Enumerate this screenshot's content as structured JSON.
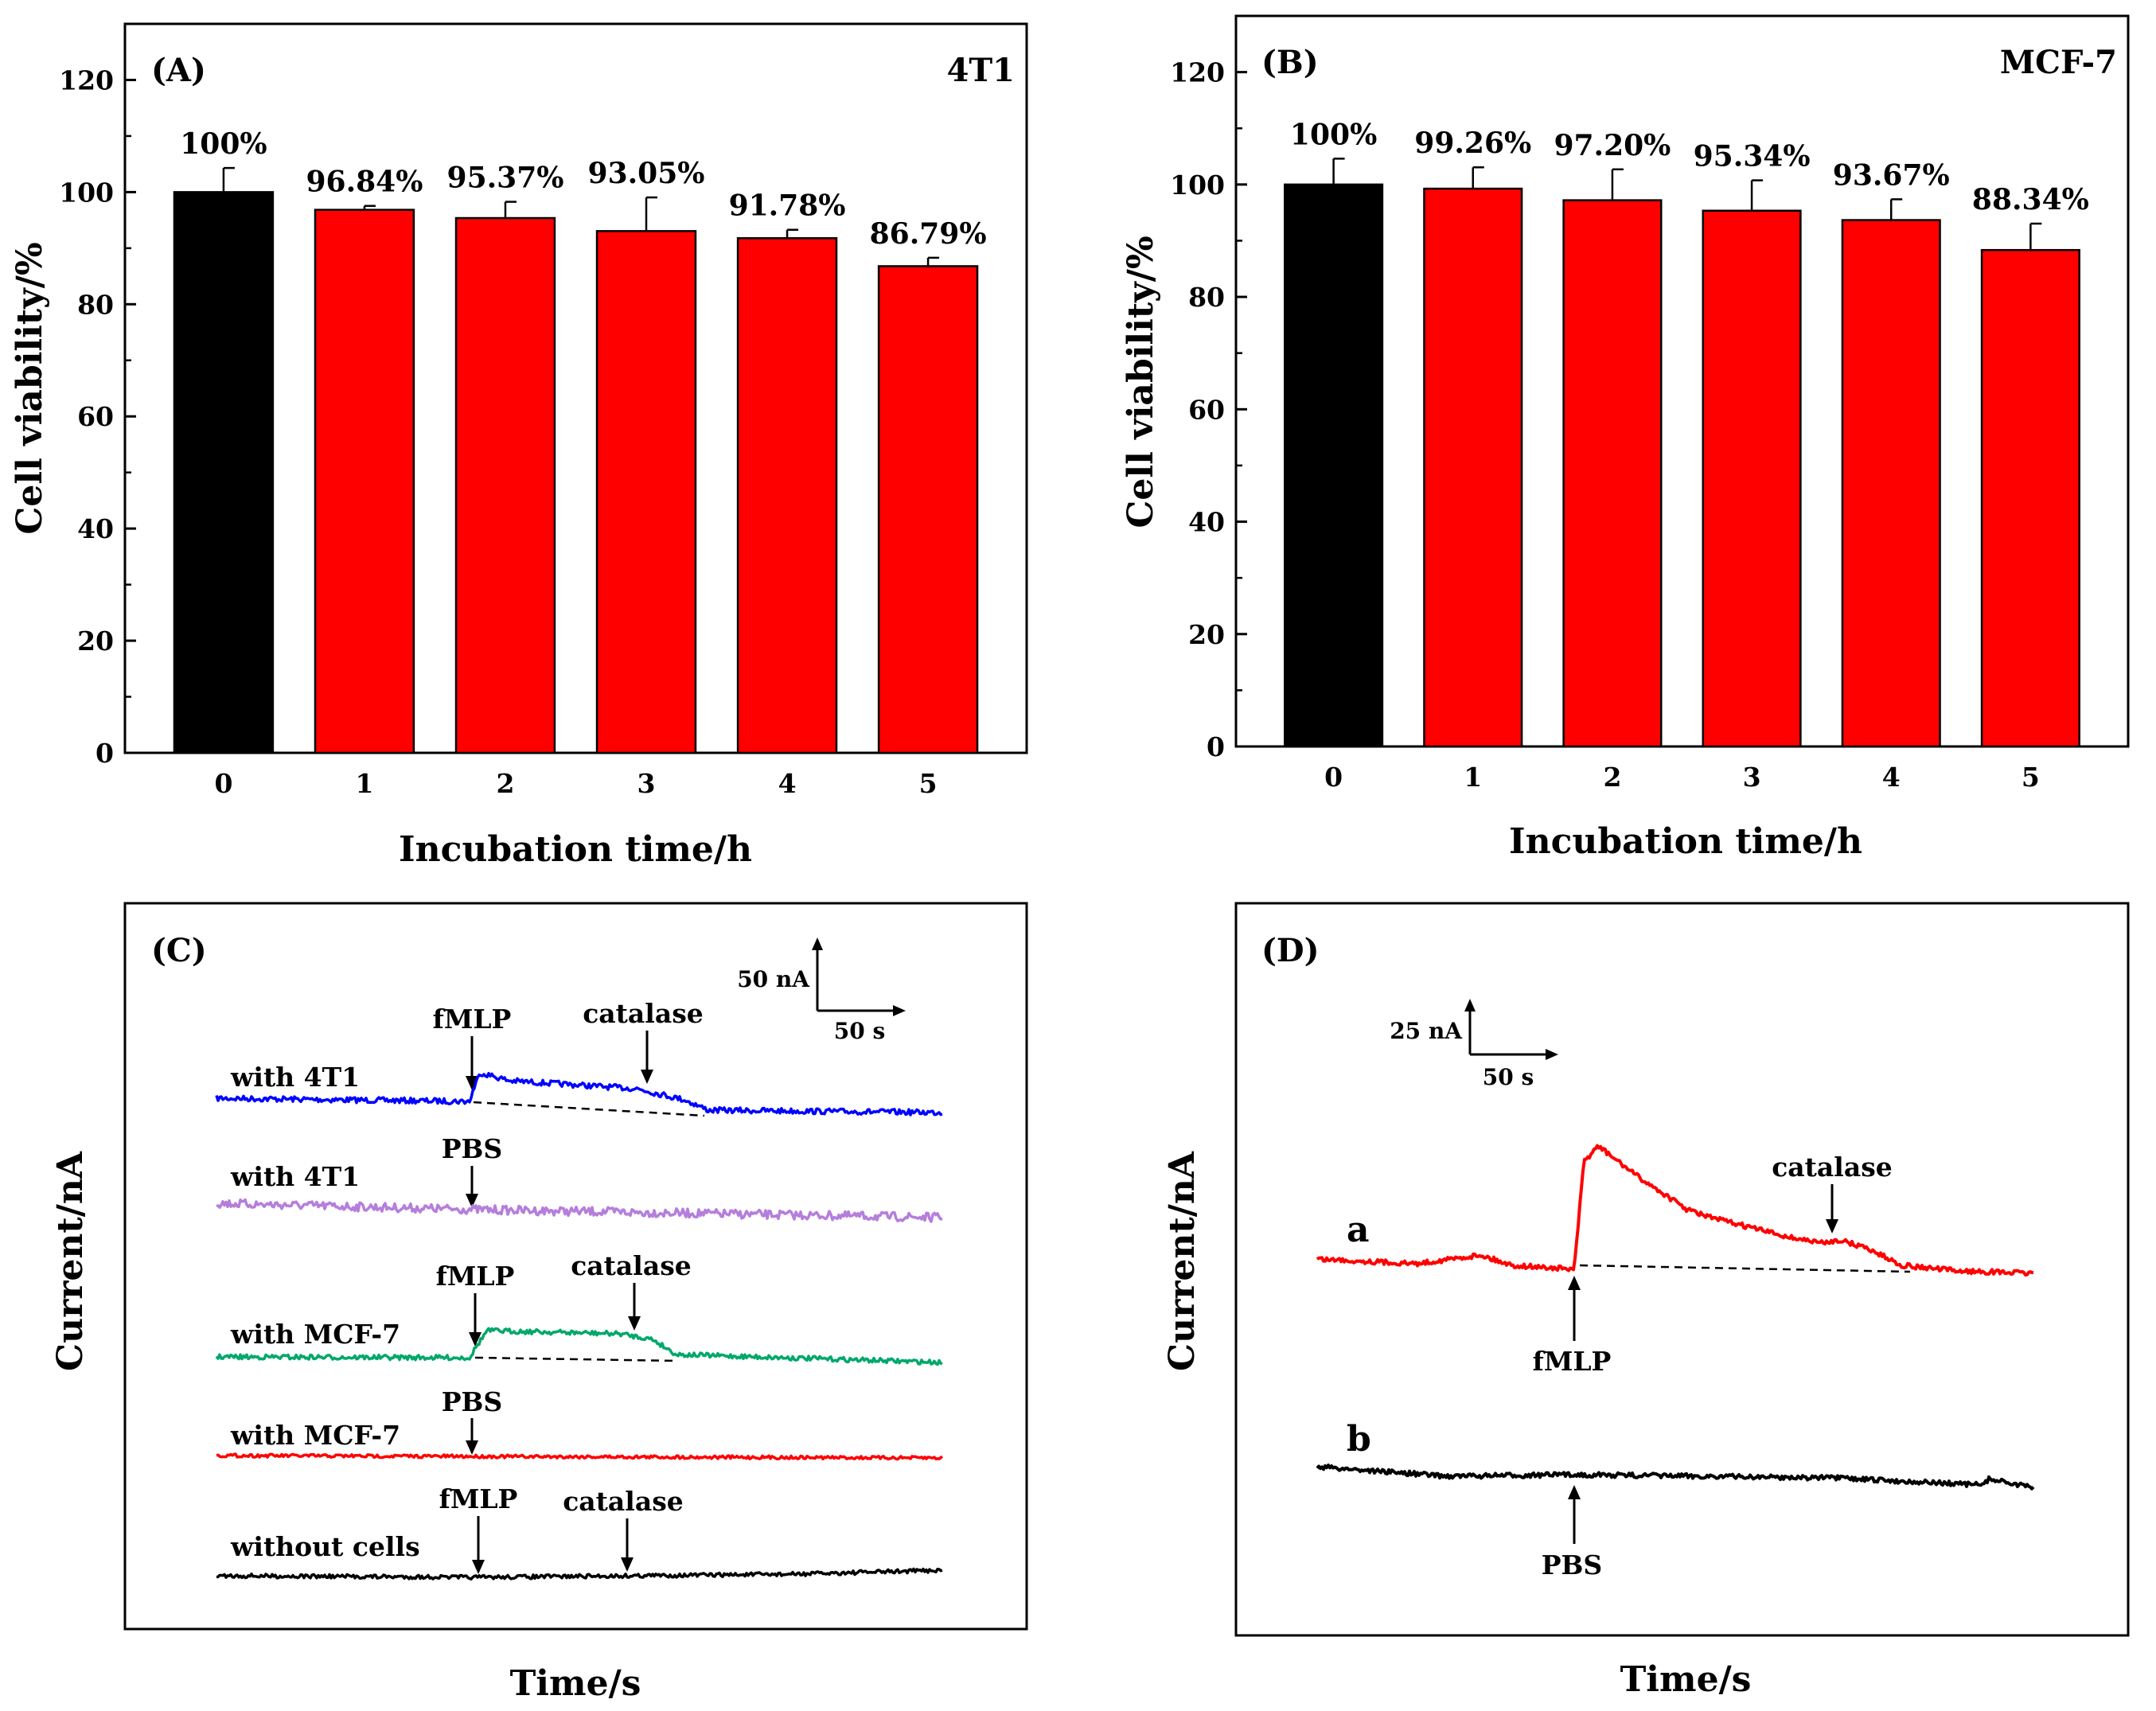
{
  "chart_data": [
    {
      "type": "bar",
      "panel": "(A)",
      "title": "4T1",
      "xlabel": "Incubation time/h",
      "ylabel": "Cell viability/%",
      "categories": [
        "0",
        "1",
        "2",
        "3",
        "4",
        "5"
      ],
      "values": [
        100,
        96.84,
        95.37,
        93.05,
        91.78,
        86.79
      ],
      "errors": [
        4.3,
        0.7,
        2.9,
        6.0,
        1.5,
        1.5
      ],
      "value_labels": [
        "100%",
        "96.84%",
        "95.37%",
        "93.05%",
        "91.78%",
        "86.79%"
      ],
      "colors": [
        "#000000",
        "#ff0000",
        "#ff0000",
        "#ff0000",
        "#ff0000",
        "#ff0000"
      ],
      "ylim": [
        0,
        130
      ],
      "yticks": [
        0,
        20,
        40,
        60,
        80,
        100,
        120
      ],
      "grid": false
    },
    {
      "type": "bar",
      "panel": "(B)",
      "title": "MCF-7",
      "xlabel": "Incubation time/h",
      "ylabel": "Cell viability/%",
      "categories": [
        "0",
        "1",
        "2",
        "3",
        "4",
        "5"
      ],
      "values": [
        100,
        99.26,
        97.2,
        95.34,
        93.67,
        88.34
      ],
      "errors": [
        4.6,
        3.8,
        5.5,
        5.4,
        3.7,
        4.7
      ],
      "value_labels": [
        "100%",
        "99.26%",
        "97.20%",
        "95.34%",
        "93.67%",
        "88.34%"
      ],
      "colors": [
        "#000000",
        "#ff0000",
        "#ff0000",
        "#ff0000",
        "#ff0000",
        "#ff0000"
      ],
      "ylim": [
        0,
        130
      ],
      "yticks": [
        0,
        20,
        40,
        60,
        80,
        100,
        120
      ],
      "grid": false
    },
    {
      "type": "line",
      "panel": "(C)",
      "xlabel": "Time/s",
      "ylabel": "Current/nA",
      "scale_bar": {
        "current": "50 nA",
        "time": "50 s"
      },
      "traces": [
        {
          "name": "with 4T1",
          "color": "#0000ff",
          "stimulus": "fMLP",
          "inhibitor": "catalase"
        },
        {
          "name": "with 4T1",
          "color": "#b57edc",
          "stimulus": "PBS"
        },
        {
          "name": "with MCF-7",
          "color": "#00a86b",
          "stimulus": "fMLP",
          "inhibitor": "catalase"
        },
        {
          "name": "with MCF-7",
          "color": "#ff0000",
          "stimulus": "PBS"
        },
        {
          "name": "without cells",
          "color": "#000000",
          "stimulus": "fMLP",
          "inhibitor": "catalase"
        }
      ]
    },
    {
      "type": "line",
      "panel": "(D)",
      "xlabel": "Time/s",
      "ylabel": "Current/nA",
      "scale_bar": {
        "current": "25 nA",
        "time": "50 s"
      },
      "traces": [
        {
          "name": "a",
          "color": "#ff0000",
          "stimulus": "fMLP",
          "inhibitor": "catalase"
        },
        {
          "name": "b",
          "color": "#000000",
          "stimulus": "PBS"
        }
      ]
    }
  ]
}
